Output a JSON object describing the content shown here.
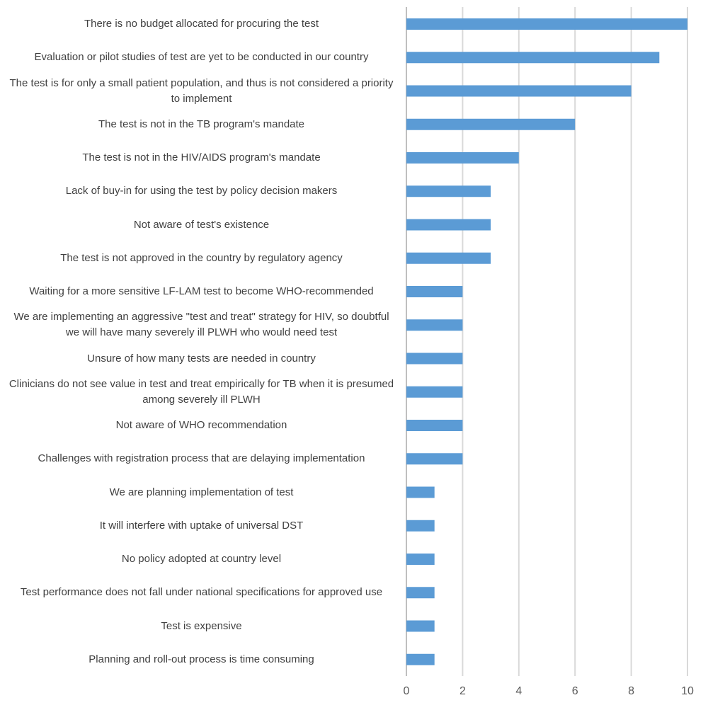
{
  "chart_data": {
    "type": "bar",
    "orientation": "horizontal",
    "title": "",
    "xlabel": "",
    "ylabel": "",
    "xlim": [
      0,
      10
    ],
    "ticks": [
      0,
      2,
      4,
      6,
      8,
      10
    ],
    "grid": true,
    "bar_color": "#5b9bd5",
    "grid_color": "#d9d9d9",
    "categories": [
      "There is no budget allocated for procuring the test",
      "Evaluation or pilot studies of test are yet to be conducted in our country",
      "The test is for only a small patient population, and thus is not considered a priority to implement",
      "The test is not in the TB program's mandate",
      "The test is not in the HIV/AIDS program's mandate",
      "Lack of buy-in for using the test by policy decision makers",
      "Not aware of test's existence",
      "The test is not approved in the country by regulatory agency",
      "Waiting for a more sensitive LF-LAM test to become WHO-recommended",
      "We are implementing an aggressive \"test and treat\" strategy for HIV, so doubtful we will have many severely ill PLWH who would need test",
      "Unsure of how many tests are needed in country",
      "Clinicians do not see value in test and treat empirically for TB when it is presumed among severely ill PLWH",
      "Not aware of WHO recommendation",
      "Challenges with registration process that are delaying implementation",
      "We are planning implementation of test",
      "It will interfere with uptake of universal DST",
      "No policy adopted at country level",
      "Test performance does not fall under national specifications for approved use",
      "Test is expensive",
      "Planning and roll-out process is time consuming"
    ],
    "values": [
      10,
      9,
      8,
      6,
      4,
      3,
      3,
      3,
      2,
      2,
      2,
      2,
      2,
      2,
      1,
      1,
      1,
      1,
      1,
      1
    ]
  }
}
